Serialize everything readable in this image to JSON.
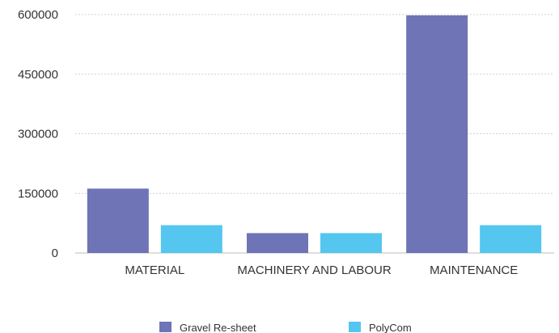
{
  "chart_data": {
    "type": "bar",
    "title": "",
    "xlabel": "",
    "ylabel": "",
    "categories": [
      "MATERIAL",
      "MACHINERY AND LABOUR",
      "MAINTENANCE"
    ],
    "series": [
      {
        "name": "Gravel Re-sheet",
        "values": [
          162000,
          50000,
          598000
        ],
        "color": "#6e74b6"
      },
      {
        "name": "PolyCom",
        "values": [
          70000,
          50000,
          70000
        ],
        "color": "#54c6ef"
      }
    ],
    "ylim": [
      0,
      600000
    ],
    "yticks": [
      0,
      150000,
      300000,
      450000,
      600000
    ],
    "grid": true,
    "legend": "bottom"
  }
}
